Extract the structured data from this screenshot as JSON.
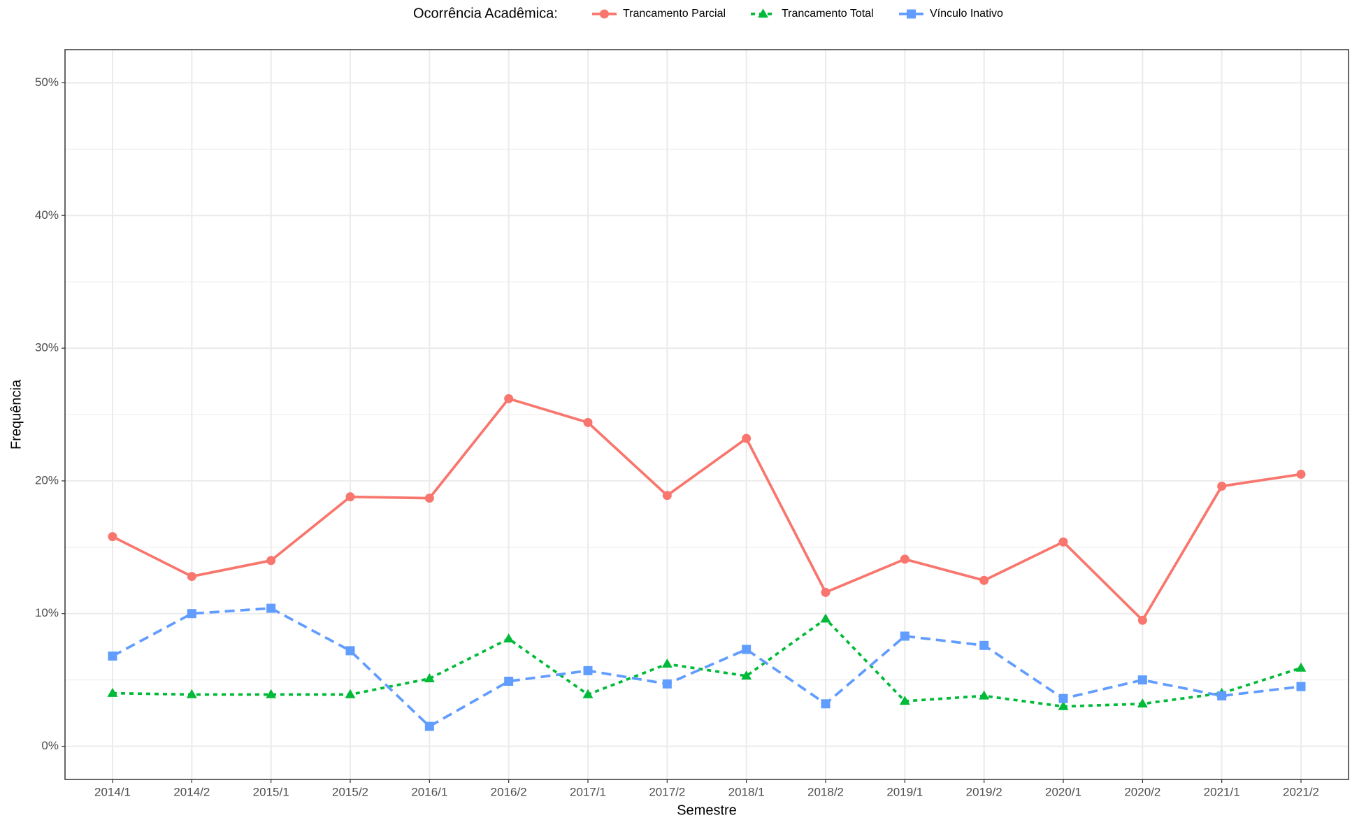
{
  "chart_data": {
    "type": "line",
    "legend_title": "Ocorrência Acadêmica:",
    "legend_position": "top",
    "x_label": "Semestre",
    "y_label": "Frequência",
    "categories": [
      "2014/1",
      "2014/2",
      "2015/1",
      "2015/2",
      "2016/1",
      "2016/2",
      "2017/1",
      "2017/2",
      "2018/1",
      "2018/2",
      "2019/1",
      "2019/2",
      "2020/1",
      "2020/2",
      "2021/1",
      "2021/2"
    ],
    "series": [
      {
        "name": "Trancamento Parcial",
        "color": "#F8766D",
        "linetype": "solid",
        "marker": "circle",
        "values": [
          15.8,
          12.8,
          14.0,
          18.8,
          18.7,
          26.2,
          24.4,
          18.9,
          23.2,
          11.6,
          14.1,
          12.5,
          15.4,
          9.5,
          19.6,
          20.5
        ]
      },
      {
        "name": "Trancamento Total",
        "color": "#00BA38",
        "linetype": "dotted",
        "marker": "triangle",
        "values": [
          4.0,
          3.9,
          3.9,
          3.9,
          5.1,
          8.1,
          3.9,
          6.2,
          5.3,
          9.6,
          3.4,
          3.8,
          3.0,
          3.2,
          4.0,
          5.9
        ]
      },
      {
        "name": "Vínculo Inativo",
        "color": "#619CFF",
        "linetype": "dashed",
        "marker": "square",
        "values": [
          6.8,
          10.0,
          10.4,
          7.2,
          1.5,
          4.9,
          5.7,
          4.7,
          7.3,
          3.2,
          8.3,
          7.6,
          3.6,
          5.0,
          3.8,
          4.5
        ]
      }
    ],
    "ylim": [
      -2.5,
      52.5
    ],
    "yticks": [
      {
        "value": 0,
        "label": "0%"
      },
      {
        "value": 10,
        "label": "10%"
      },
      {
        "value": 20,
        "label": "20%"
      },
      {
        "value": 30,
        "label": "30%"
      },
      {
        "value": 40,
        "label": "40%"
      },
      {
        "value": 50,
        "label": "50%"
      }
    ],
    "minor_yticks": [
      5,
      15,
      25,
      35,
      45
    ],
    "grid": true
  }
}
